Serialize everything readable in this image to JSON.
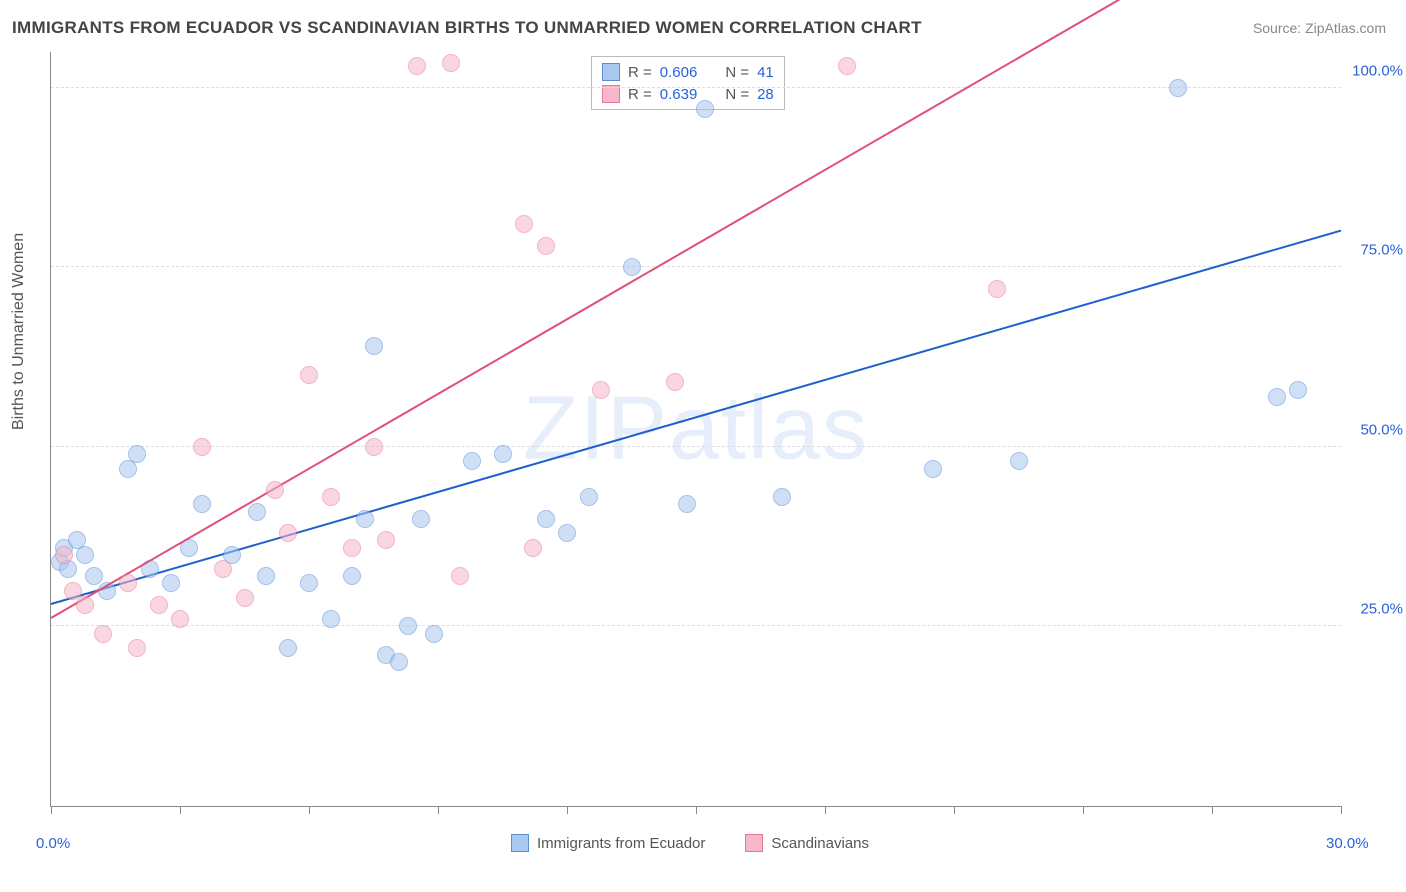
{
  "title": "IMMIGRANTS FROM ECUADOR VS SCANDINAVIAN BIRTHS TO UNMARRIED WOMEN CORRELATION CHART",
  "source": "Source: ZipAtlas.com",
  "watermark": "ZIPatlas",
  "y_axis_title": "Births to Unmarried Women",
  "chart": {
    "type": "scatter",
    "xlim": [
      0,
      30
    ],
    "ylim": [
      0,
      105
    ],
    "x_ticks": [
      0,
      3,
      6,
      9,
      12,
      15,
      18,
      21,
      24,
      27,
      30
    ],
    "y_gridlines": [
      25,
      50,
      75,
      100
    ],
    "x_labels": [
      {
        "v": 0,
        "t": "0.0%"
      },
      {
        "v": 30,
        "t": "30.0%"
      }
    ],
    "y_labels": [
      {
        "v": 25,
        "t": "25.0%"
      },
      {
        "v": 50,
        "t": "50.0%"
      },
      {
        "v": 75,
        "t": "75.0%"
      },
      {
        "v": 100,
        "t": "100.0%"
      }
    ],
    "marker_radius": 9,
    "marker_border_width": 1.2,
    "background_color": "#ffffff",
    "grid_color": "#dddddd"
  },
  "series": [
    {
      "name": "Immigrants from Ecuador",
      "fill": "#a9c8f0",
      "stroke": "#5a8fd8",
      "fill_opacity": 0.55,
      "points": [
        [
          0.2,
          34
        ],
        [
          0.3,
          36
        ],
        [
          0.4,
          33
        ],
        [
          0.6,
          37
        ],
        [
          0.8,
          35
        ],
        [
          1.0,
          32
        ],
        [
          1.3,
          30
        ],
        [
          1.8,
          47
        ],
        [
          2.0,
          49
        ],
        [
          2.3,
          33
        ],
        [
          2.8,
          31
        ],
        [
          3.2,
          36
        ],
        [
          3.5,
          42
        ],
        [
          4.2,
          35
        ],
        [
          4.8,
          41
        ],
        [
          5.0,
          32
        ],
        [
          5.5,
          22
        ],
        [
          6.0,
          31
        ],
        [
          6.5,
          26
        ],
        [
          7.0,
          32
        ],
        [
          7.3,
          40
        ],
        [
          7.5,
          64
        ],
        [
          7.8,
          21
        ],
        [
          8.1,
          20
        ],
        [
          8.3,
          25
        ],
        [
          8.6,
          40
        ],
        [
          8.9,
          24
        ],
        [
          9.8,
          48
        ],
        [
          10.5,
          49
        ],
        [
          11.5,
          40
        ],
        [
          12.0,
          38
        ],
        [
          12.5,
          43
        ],
        [
          13.5,
          75
        ],
        [
          14.8,
          42
        ],
        [
          15.2,
          97
        ],
        [
          17.0,
          43
        ],
        [
          20.5,
          47
        ],
        [
          22.5,
          48
        ],
        [
          26.2,
          100
        ],
        [
          28.5,
          57
        ],
        [
          29.0,
          58
        ]
      ],
      "trend": {
        "y_at_x0": 28,
        "y_at_x30": 80,
        "color": "#1f5fd0",
        "width": 2
      }
    },
    {
      "name": "Scandinavians",
      "fill": "#f6b8c8",
      "stroke": "#e47a9a",
      "fill_opacity": 0.55,
      "points": [
        [
          0.3,
          35
        ],
        [
          0.5,
          30
        ],
        [
          0.8,
          28
        ],
        [
          1.2,
          24
        ],
        [
          1.8,
          31
        ],
        [
          2.0,
          22
        ],
        [
          2.5,
          28
        ],
        [
          3.0,
          26
        ],
        [
          3.5,
          50
        ],
        [
          4.0,
          33
        ],
        [
          4.5,
          29
        ],
        [
          5.2,
          44
        ],
        [
          5.5,
          38
        ],
        [
          6.0,
          60
        ],
        [
          6.5,
          43
        ],
        [
          7.0,
          36
        ],
        [
          7.5,
          50
        ],
        [
          7.8,
          37
        ],
        [
          8.5,
          103
        ],
        [
          9.3,
          103.5
        ],
        [
          9.5,
          32
        ],
        [
          11.0,
          81
        ],
        [
          11.2,
          36
        ],
        [
          11.5,
          78
        ],
        [
          12.8,
          58
        ],
        [
          14.5,
          59
        ],
        [
          18.5,
          103
        ],
        [
          22.0,
          72
        ]
      ],
      "trend": {
        "y_at_x0": 26,
        "y_at_x30": 130,
        "color": "#e04f7c",
        "width": 2
      }
    }
  ],
  "legend_top": [
    {
      "sw_fill": "#a9c8f0",
      "sw_stroke": "#5a8fd8",
      "r_label": "R =",
      "r": "0.606",
      "n_label": "N =",
      "n": "41"
    },
    {
      "sw_fill": "#f6b8c8",
      "sw_stroke": "#e47a9a",
      "r_label": "R =",
      "r": "0.639",
      "n_label": "N =",
      "n": "28"
    }
  ],
  "legend_bottom": [
    {
      "sw_fill": "#a9c8f0",
      "sw_stroke": "#5a8fd8",
      "label": "Immigrants from Ecuador"
    },
    {
      "sw_fill": "#f6b8c8",
      "sw_stroke": "#e47a9a",
      "label": "Scandinavians"
    }
  ]
}
